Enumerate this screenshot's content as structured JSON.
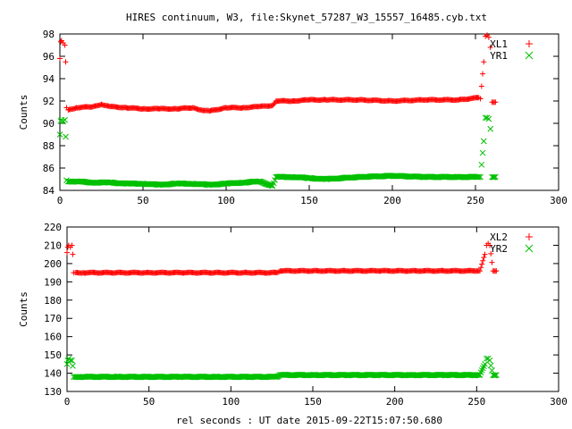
{
  "chart_data": [
    {
      "type": "scatter",
      "title": "HIRES continuum, W3, file:Skynet_57287_W3_15557_16485.cyb.txt",
      "xlabel": "",
      "ylabel": "Counts",
      "xlim": [
        0,
        300
      ],
      "ylim": [
        84,
        98
      ],
      "xticks": [
        "0",
        "50",
        "100",
        "150",
        "200",
        "250",
        "300"
      ],
      "yticks": [
        "84",
        "86",
        "88",
        "90",
        "92",
        "94",
        "96",
        "98"
      ],
      "legend_position": "top-right",
      "series": [
        {
          "name": "XL1",
          "marker": "plus",
          "color": "#ff0000",
          "x": [
            0,
            0.5,
            1,
            2,
            3,
            3.5,
            4,
            5,
            10,
            20,
            25,
            30,
            40,
            50,
            60,
            70,
            80,
            85,
            90,
            100,
            110,
            120,
            128,
            130,
            140,
            150,
            160,
            180,
            200,
            220,
            240,
            252,
            253,
            255,
            256,
            257,
            258,
            259,
            260,
            262
          ],
          "y": [
            95.8,
            97.3,
            97.4,
            97.2,
            97.0,
            95.5,
            91.4,
            91.2,
            91.4,
            91.5,
            91.7,
            91.5,
            91.4,
            91.3,
            91.3,
            91.3,
            91.4,
            91.2,
            91.1,
            91.4,
            91.4,
            91.5,
            91.6,
            92.0,
            92.0,
            92.1,
            92.1,
            92.1,
            92.0,
            92.1,
            92.1,
            92.3,
            92.2,
            95.5,
            97.8,
            97.9,
            97.7,
            96.8,
            91.9,
            91.9
          ]
        },
        {
          "name": "YR1",
          "marker": "x",
          "color": "#00c000",
          "x": [
            0,
            0.5,
            1,
            2,
            3,
            3.5,
            4,
            5,
            10,
            20,
            30,
            40,
            50,
            60,
            70,
            80,
            90,
            100,
            110,
            120,
            128,
            130,
            140,
            150,
            160,
            180,
            200,
            220,
            240,
            252,
            253,
            255,
            256,
            257,
            258,
            259,
            260,
            262
          ],
          "y": [
            89.0,
            90.2,
            90.3,
            90.2,
            90.3,
            88.8,
            84.9,
            84.8,
            84.8,
            84.7,
            84.7,
            84.6,
            84.6,
            84.5,
            84.6,
            84.6,
            84.5,
            84.6,
            84.7,
            84.8,
            84.4,
            85.2,
            85.2,
            85.1,
            85.0,
            85.2,
            85.3,
            85.2,
            85.2,
            85.2,
            85.2,
            88.4,
            90.5,
            90.5,
            90.4,
            89.5,
            85.2,
            85.2
          ]
        }
      ]
    },
    {
      "type": "scatter",
      "title": "",
      "xlabel": "rel seconds : UT date 2015-09-22T15:07:50.680",
      "ylabel": "Counts",
      "xlim": [
        0,
        300
      ],
      "ylim": [
        130,
        220
      ],
      "xticks": [
        "0",
        "50",
        "100",
        "150",
        "200",
        "250",
        "300"
      ],
      "yticks": [
        "130",
        "140",
        "150",
        "160",
        "170",
        "180",
        "190",
        "200",
        "210",
        "220"
      ],
      "legend_position": "top-right",
      "series": [
        {
          "name": "XL2",
          "marker": "plus",
          "color": "#ff0000",
          "x": [
            0,
            0.5,
            1,
            2,
            3,
            3.5,
            4,
            5,
            10,
            30,
            50,
            70,
            90,
            110,
            128,
            130,
            150,
            170,
            190,
            210,
            230,
            250,
            252,
            255,
            256,
            257,
            258,
            260,
            262
          ],
          "y": [
            206,
            209,
            210,
            209,
            210,
            205,
            195,
            195,
            195,
            195,
            195,
            195,
            195,
            195,
            195,
            196,
            196,
            196,
            196,
            196,
            196,
            196,
            196,
            205,
            210,
            211,
            210,
            196,
            196
          ]
        },
        {
          "name": "YR2",
          "marker": "x",
          "color": "#00c000",
          "x": [
            0,
            0.5,
            1,
            2,
            3,
            3.5,
            4,
            5,
            10,
            30,
            50,
            70,
            90,
            110,
            128,
            130,
            150,
            170,
            190,
            210,
            230,
            250,
            252,
            255,
            256,
            257,
            258,
            260,
            262
          ],
          "y": [
            145,
            147,
            148,
            147,
            147,
            144,
            138,
            138,
            138,
            138,
            138,
            138,
            138,
            138,
            138,
            139,
            139,
            139,
            139,
            139,
            139,
            139,
            139,
            145,
            148,
            148,
            147,
            139,
            139
          ]
        }
      ]
    }
  ]
}
